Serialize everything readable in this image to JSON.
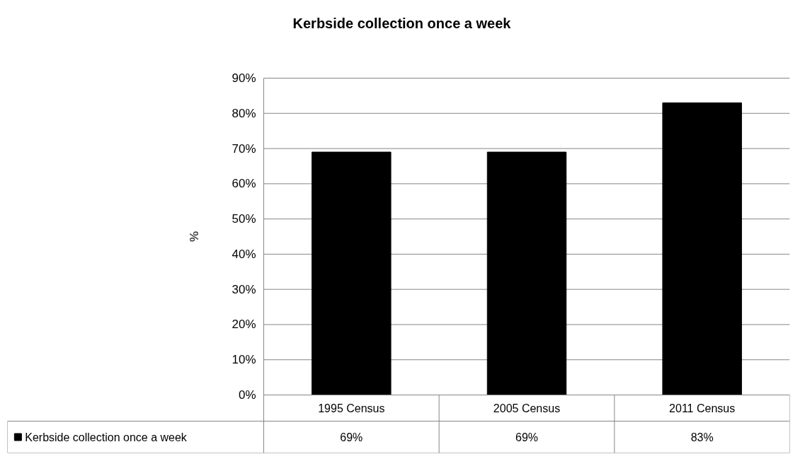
{
  "chart_data": {
    "type": "bar",
    "title": "Kerbside collection once a week",
    "ylabel": "%",
    "categories": [
      "1995 Census",
      "2005 Census",
      "2011 Census"
    ],
    "series": [
      {
        "name": "Kerbside collection once a week",
        "color": "#000000",
        "values": [
          69,
          69,
          83
        ],
        "value_labels": [
          "69%",
          "69%",
          "83%"
        ]
      }
    ],
    "ylim": [
      0,
      90
    ],
    "yticks": [
      {
        "value": 0,
        "label": "0%"
      },
      {
        "value": 10,
        "label": "10%"
      },
      {
        "value": 20,
        "label": "20%"
      },
      {
        "value": 30,
        "label": "30%"
      },
      {
        "value": 40,
        "label": "40%"
      },
      {
        "value": 50,
        "label": "50%"
      },
      {
        "value": 60,
        "label": "60%"
      },
      {
        "value": 70,
        "label": "70%"
      },
      {
        "value": 80,
        "label": "80%"
      },
      {
        "value": 90,
        "label": "90%"
      }
    ],
    "grid": "y",
    "legend": "bottom"
  }
}
